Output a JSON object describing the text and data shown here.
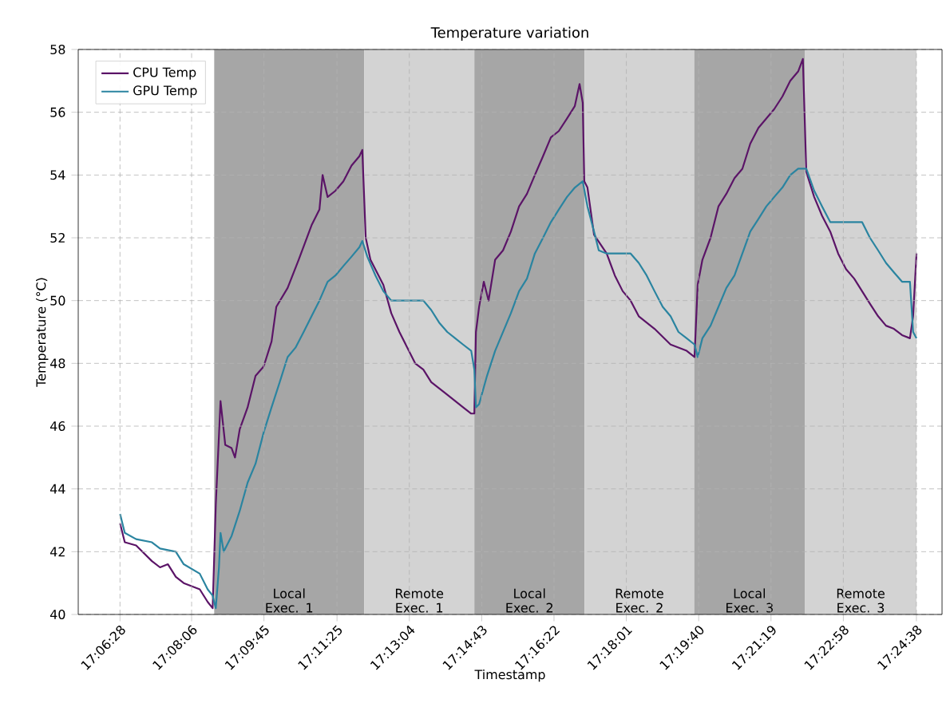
{
  "chart_data": {
    "type": "line",
    "title": "Temperature variation",
    "xlabel": "Timestamp",
    "ylabel": "Temperature (°C)",
    "xlim": [
      17.0919,
      17.4203
    ],
    "ylim": [
      40,
      58
    ],
    "xticks": [
      {
        "value": 17.10778,
        "label": "17:06:28"
      },
      {
        "value": 17.135,
        "label": "17:08:06"
      },
      {
        "value": 17.1625,
        "label": "17:09:45"
      },
      {
        "value": 17.19028,
        "label": "17:11:25"
      },
      {
        "value": 17.21778,
        "label": "17:13:04"
      },
      {
        "value": 17.24528,
        "label": "17:14:43"
      },
      {
        "value": 17.27278,
        "label": "17:16:22"
      },
      {
        "value": 17.30028,
        "label": "17:18:01"
      },
      {
        "value": 17.32778,
        "label": "17:19:40"
      },
      {
        "value": 17.35528,
        "label": "17:21:19"
      },
      {
        "value": 17.38278,
        "label": "17:22:58"
      },
      {
        "value": 17.41056,
        "label": "17:24:38"
      }
    ],
    "yticks": [
      40,
      42,
      44,
      46,
      48,
      50,
      52,
      54,
      56,
      58
    ],
    "grid": true,
    "legend": "top left",
    "bands": [
      {
        "axis": "x",
        "from": 17.1436,
        "to": 17.2006,
        "label": "Local Exec. 1",
        "color": "#a6a6a6"
      },
      {
        "axis": "x",
        "from": 17.2006,
        "to": 17.2425,
        "label": "Remote Exec. 1",
        "color": "#d3d3d3"
      },
      {
        "axis": "x",
        "from": 17.2425,
        "to": 17.2844,
        "label": "Local Exec. 2",
        "color": "#a6a6a6"
      },
      {
        "axis": "x",
        "from": 17.2844,
        "to": 17.3261,
        "label": "Remote Exec. 2",
        "color": "#d3d3d3"
      },
      {
        "axis": "x",
        "from": 17.3261,
        "to": 17.3681,
        "label": "Local Exec. 3",
        "color": "#a6a6a6"
      },
      {
        "axis": "x",
        "from": 17.3681,
        "to": 17.4106,
        "label": "Remote Exec. 3",
        "color": "#d3d3d3"
      }
    ],
    "series": [
      {
        "name": "CPU Temp",
        "color": "#5b1467",
        "x": [
          17.1078,
          17.1096,
          17.1139,
          17.1199,
          17.123,
          17.126,
          17.129,
          17.132,
          17.1381,
          17.1411,
          17.143,
          17.1442,
          17.146,
          17.1478,
          17.1502,
          17.1515,
          17.1533,
          17.1563,
          17.1593,
          17.1624,
          17.1654,
          17.1672,
          17.1715,
          17.1757,
          17.1806,
          17.1836,
          17.1848,
          17.1867,
          17.1897,
          17.1927,
          17.1958,
          17.1988,
          17.1999,
          17.2012,
          17.203,
          17.2079,
          17.2109,
          17.214,
          17.217,
          17.22,
          17.2231,
          17.2261,
          17.2322,
          17.2382,
          17.2413,
          17.2425,
          17.2431,
          17.2443,
          17.2461,
          17.2479,
          17.2504,
          17.2534,
          17.2564,
          17.2595,
          17.2625,
          17.2655,
          17.2686,
          17.2716,
          17.2746,
          17.2777,
          17.2807,
          17.2825,
          17.2837,
          17.2843,
          17.2855,
          17.288,
          17.2928,
          17.2959,
          17.2989,
          17.3019,
          17.305,
          17.308,
          17.311,
          17.3171,
          17.3232,
          17.3262,
          17.3274,
          17.3292,
          17.3323,
          17.3353,
          17.3383,
          17.3414,
          17.3444,
          17.3474,
          17.3505,
          17.3535,
          17.3565,
          17.3596,
          17.3626,
          17.3656,
          17.3674,
          17.3687,
          17.3717,
          17.3747,
          17.3778,
          17.3808,
          17.3838,
          17.3869,
          17.3899,
          17.3929,
          17.396,
          17.399,
          17.402,
          17.4051,
          17.4081,
          17.4093,
          17.4106
        ],
        "values": [
          42.9,
          42.3,
          42.2,
          41.7,
          41.5,
          41.6,
          41.2,
          41.0,
          40.8,
          40.4,
          40.2,
          43.5,
          46.8,
          45.4,
          45.3,
          45.0,
          45.9,
          46.6,
          47.6,
          47.9,
          48.7,
          49.8,
          50.4,
          51.3,
          52.4,
          52.9,
          54.0,
          53.3,
          53.5,
          53.8,
          54.3,
          54.6,
          54.8,
          52.0,
          51.3,
          50.5,
          49.6,
          49.0,
          48.5,
          48.0,
          47.8,
          47.4,
          47.0,
          46.6,
          46.4,
          46.4,
          49.0,
          49.8,
          50.6,
          50.0,
          51.3,
          51.6,
          52.2,
          53.0,
          53.4,
          54.0,
          54.6,
          55.2,
          55.4,
          55.8,
          56.2,
          56.9,
          56.3,
          53.8,
          53.6,
          52.1,
          51.5,
          50.8,
          50.3,
          50.0,
          49.5,
          49.3,
          49.1,
          48.6,
          48.4,
          48.2,
          50.5,
          51.3,
          52.0,
          53.0,
          53.4,
          53.9,
          54.2,
          55.0,
          55.5,
          55.8,
          56.1,
          56.5,
          57.0,
          57.3,
          57.7,
          54.1,
          53.3,
          52.7,
          52.2,
          51.5,
          51.0,
          50.7,
          50.3,
          49.9,
          49.5,
          49.2,
          49.1,
          48.9,
          48.8,
          49.5,
          51.5
        ]
      },
      {
        "name": "GPU Temp",
        "color": "#2a84a0",
        "x": [
          17.1078,
          17.1096,
          17.1139,
          17.1199,
          17.123,
          17.129,
          17.132,
          17.1381,
          17.1411,
          17.143,
          17.1442,
          17.1454,
          17.146,
          17.1472,
          17.1502,
          17.1533,
          17.1563,
          17.1593,
          17.1624,
          17.1654,
          17.1685,
          17.1715,
          17.1745,
          17.1776,
          17.1806,
          17.1836,
          17.1867,
          17.1897,
          17.1927,
          17.1958,
          17.1988,
          17.1999,
          17.2018,
          17.2049,
          17.2079,
          17.2109,
          17.2231,
          17.2261,
          17.2291,
          17.2322,
          17.2352,
          17.2382,
          17.2413,
          17.2425,
          17.2431,
          17.2443,
          17.2473,
          17.2504,
          17.2534,
          17.2564,
          17.2595,
          17.2625,
          17.2655,
          17.2686,
          17.2716,
          17.2746,
          17.2777,
          17.2807,
          17.2837,
          17.2855,
          17.288,
          17.2898,
          17.2928,
          17.3019,
          17.305,
          17.308,
          17.311,
          17.3141,
          17.3171,
          17.3201,
          17.3232,
          17.3262,
          17.3274,
          17.3292,
          17.3323,
          17.3353,
          17.3383,
          17.3414,
          17.3444,
          17.3474,
          17.3505,
          17.3535,
          17.3565,
          17.3596,
          17.3626,
          17.3656,
          17.3687,
          17.3717,
          17.3747,
          17.3778,
          17.3899,
          17.3929,
          17.396,
          17.399,
          17.402,
          17.4051,
          17.4081,
          17.4093,
          17.4106
        ],
        "values": [
          43.2,
          42.6,
          42.4,
          42.3,
          42.1,
          42.0,
          41.6,
          41.3,
          40.8,
          40.6,
          40.2,
          41.5,
          42.6,
          42.0,
          42.5,
          43.3,
          44.2,
          44.8,
          45.8,
          46.6,
          47.4,
          48.2,
          48.5,
          49.0,
          49.5,
          50.0,
          50.6,
          50.8,
          51.1,
          51.4,
          51.7,
          51.9,
          51.4,
          50.8,
          50.3,
          50.0,
          50.0,
          49.7,
          49.3,
          49.0,
          48.8,
          48.6,
          48.4,
          47.8,
          46.6,
          46.7,
          47.6,
          48.4,
          49.0,
          49.6,
          50.3,
          50.7,
          51.5,
          52.0,
          52.5,
          52.9,
          53.3,
          53.6,
          53.8,
          53.0,
          52.2,
          51.6,
          51.5,
          51.5,
          51.2,
          50.8,
          50.3,
          49.8,
          49.5,
          49.0,
          48.8,
          48.6,
          48.2,
          48.8,
          49.2,
          49.8,
          50.4,
          50.8,
          51.5,
          52.2,
          52.6,
          53.0,
          53.3,
          53.6,
          54.0,
          54.2,
          54.2,
          53.5,
          53.0,
          52.5,
          52.5,
          52.0,
          51.6,
          51.2,
          50.9,
          50.6,
          50.6,
          49.0,
          48.8
        ]
      }
    ]
  }
}
